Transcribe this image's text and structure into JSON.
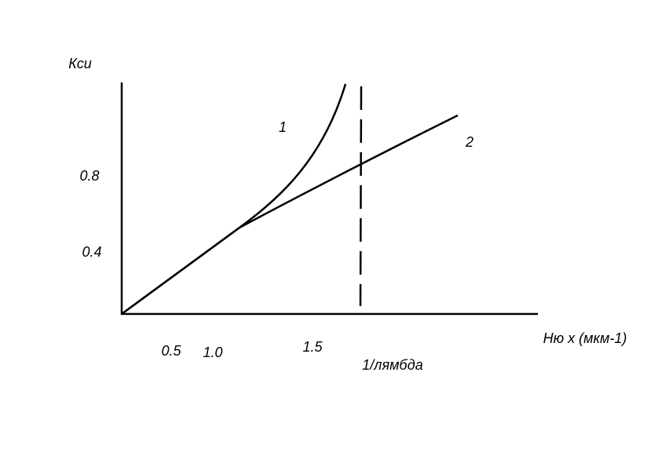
{
  "y_axis": {
    "title": "Кси",
    "labels": [
      "0.8",
      "0.4"
    ]
  },
  "x_axis": {
    "title": "Ню x (мкм-1)",
    "labels": [
      "0.5",
      "1.0",
      "1.5"
    ]
  },
  "marker": {
    "label": "1/лямбда"
  },
  "curves": [
    {
      "label": "1"
    },
    {
      "label": "2"
    }
  ]
}
